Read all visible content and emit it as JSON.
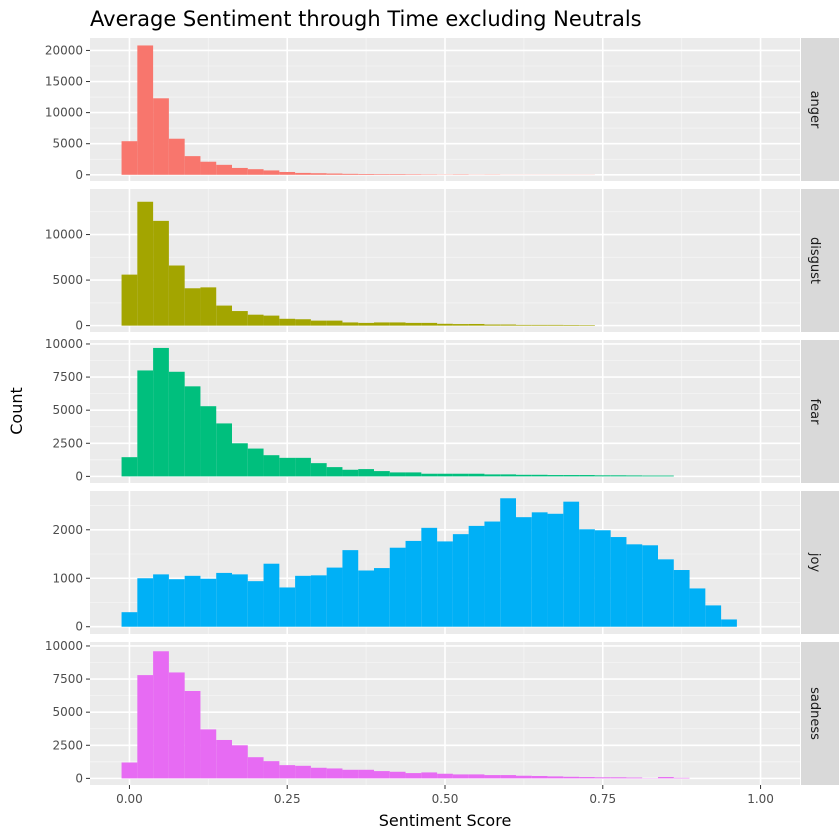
{
  "chart_data": {
    "type": "bar",
    "title": "Average Sentiment through Time excluding Neutrals",
    "xlabel": "Sentiment Score",
    "ylabel": "Count",
    "xlim": [
      -0.0625,
      1.0625
    ],
    "x_ticks": [
      0,
      0.25,
      0.5,
      0.75,
      1
    ],
    "x_tick_labels": [
      "0.00",
      "0.25",
      "0.50",
      "0.75",
      "1.00"
    ],
    "bin_start": -0.0125,
    "bin_width": 0.025,
    "grid": true,
    "facets": [
      {
        "name": "anger",
        "color": "#F8766D",
        "ylim": [
          -1000,
          22000
        ],
        "y_ticks": [
          0,
          5000,
          10000,
          15000,
          20000
        ],
        "values": [
          5400,
          20800,
          12300,
          5800,
          3000,
          2100,
          1600,
          1100,
          900,
          700,
          450,
          300,
          250,
          200,
          150,
          120,
          100,
          100,
          80,
          60,
          40,
          60,
          30,
          40,
          20,
          20,
          20,
          20,
          20,
          20,
          0,
          0,
          0,
          0,
          0,
          0,
          0,
          0,
          0,
          0
        ]
      },
      {
        "name": "disgust",
        "color": "#A3A500",
        "ylim": [
          -700,
          15000
        ],
        "y_ticks": [
          0,
          5000,
          10000
        ],
        "values": [
          5600,
          13600,
          11500,
          6600,
          4100,
          4200,
          2200,
          1600,
          1200,
          1100,
          750,
          700,
          550,
          550,
          350,
          300,
          350,
          350,
          300,
          300,
          200,
          170,
          180,
          120,
          120,
          80,
          80,
          80,
          70,
          60,
          0,
          0,
          0,
          0,
          0,
          0,
          0,
          0,
          0,
          0
        ]
      },
      {
        "name": "fear",
        "color": "#00BF7D",
        "ylim": [
          -500,
          10300
        ],
        "y_ticks": [
          0,
          2500,
          5000,
          7500,
          10000
        ],
        "values": [
          1450,
          8000,
          9700,
          7900,
          6800,
          5300,
          4000,
          2500,
          2100,
          1600,
          1400,
          1400,
          1000,
          700,
          500,
          550,
          400,
          300,
          300,
          200,
          200,
          200,
          200,
          150,
          150,
          120,
          120,
          100,
          100,
          100,
          80,
          80,
          70,
          60,
          60,
          0,
          0,
          0,
          0,
          0
        ]
      },
      {
        "name": "joy",
        "color": "#00B0F6",
        "ylim": [
          -150,
          2800
        ],
        "y_ticks": [
          0,
          1000,
          2000
        ],
        "values": [
          300,
          1000,
          1080,
          980,
          1050,
          990,
          1110,
          1080,
          940,
          1300,
          810,
          1050,
          1060,
          1220,
          1580,
          1160,
          1210,
          1630,
          1770,
          2040,
          1760,
          1910,
          2080,
          2170,
          2650,
          2260,
          2360,
          2330,
          2580,
          2010,
          1990,
          1850,
          1700,
          1680,
          1390,
          1170,
          790,
          440,
          150,
          0
        ]
      },
      {
        "name": "sadness",
        "color": "#E76BF3",
        "ylim": [
          -500,
          10300
        ],
        "y_ticks": [
          0,
          2500,
          5000,
          7500,
          10000
        ],
        "values": [
          1200,
          7800,
          9600,
          8000,
          6600,
          3700,
          2900,
          2500,
          1600,
          1300,
          1000,
          950,
          800,
          750,
          650,
          650,
          550,
          500,
          400,
          450,
          350,
          300,
          300,
          250,
          250,
          200,
          180,
          150,
          120,
          100,
          80,
          80,
          60,
          20,
          100,
          40,
          0,
          0,
          0,
          0
        ]
      }
    ]
  }
}
